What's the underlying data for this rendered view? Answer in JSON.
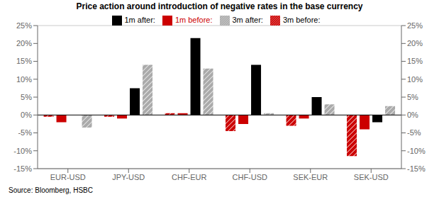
{
  "chart_data": {
    "type": "bar",
    "title": "Price action around introduction of negative rates in the base currency",
    "categories": [
      "EUR-USD",
      "JPY-USD",
      "CHF-EUR",
      "CHF-USD",
      "SEK-EUR",
      "SEK-USD"
    ],
    "series": [
      {
        "name": "3m before:",
        "color": "#CC0000",
        "values": [
          -0.5,
          -0.5,
          0.5,
          -4.5,
          -3.0,
          -11.5
        ]
      },
      {
        "name": "1m before:",
        "color": "#CC0000",
        "values": [
          -2.0,
          -1.0,
          0.5,
          -2.5,
          -1.0,
          -4.0
        ]
      },
      {
        "name": "1m after:",
        "color": "#000000",
        "values": [
          0.0,
          7.5,
          21.5,
          14.0,
          5.0,
          -2.0
        ]
      },
      {
        "name": "3m after:",
        "color": "#aaaaaa",
        "values": [
          -3.5,
          14.0,
          13.0,
          0.5,
          3.0,
          2.5
        ]
      }
    ],
    "ylim": [
      -15,
      25
    ],
    "yticks": [
      {
        "value": -15,
        "label": "-15%"
      },
      {
        "value": -10,
        "label": "-10%"
      },
      {
        "value": -5,
        "label": "-5%"
      },
      {
        "value": 0,
        "label": "0%"
      },
      {
        "value": 5,
        "label": "5%"
      },
      {
        "value": 10,
        "label": "10%"
      },
      {
        "value": 15,
        "label": "15%"
      },
      {
        "value": 20,
        "label": "20%"
      },
      {
        "value": 25,
        "label": "25%"
      }
    ],
    "y2lim": [
      -15,
      25
    ],
    "y2ticks": [
      {
        "value": -15,
        "label": "-15%"
      },
      {
        "value": -10,
        "label": "-10%"
      },
      {
        "value": -5,
        "label": "-5%"
      },
      {
        "value": 0,
        "label": "0%"
      },
      {
        "value": 5,
        "label": "5%"
      },
      {
        "value": 10,
        "label": "10%"
      },
      {
        "value": 15,
        "label": "15%"
      },
      {
        "value": 20,
        "label": "20%"
      },
      {
        "value": 25,
        "label": "25%"
      }
    ],
    "grid": true,
    "legend": "top",
    "annotations": [
      "Source: Bloomberg, HSBC"
    ]
  }
}
